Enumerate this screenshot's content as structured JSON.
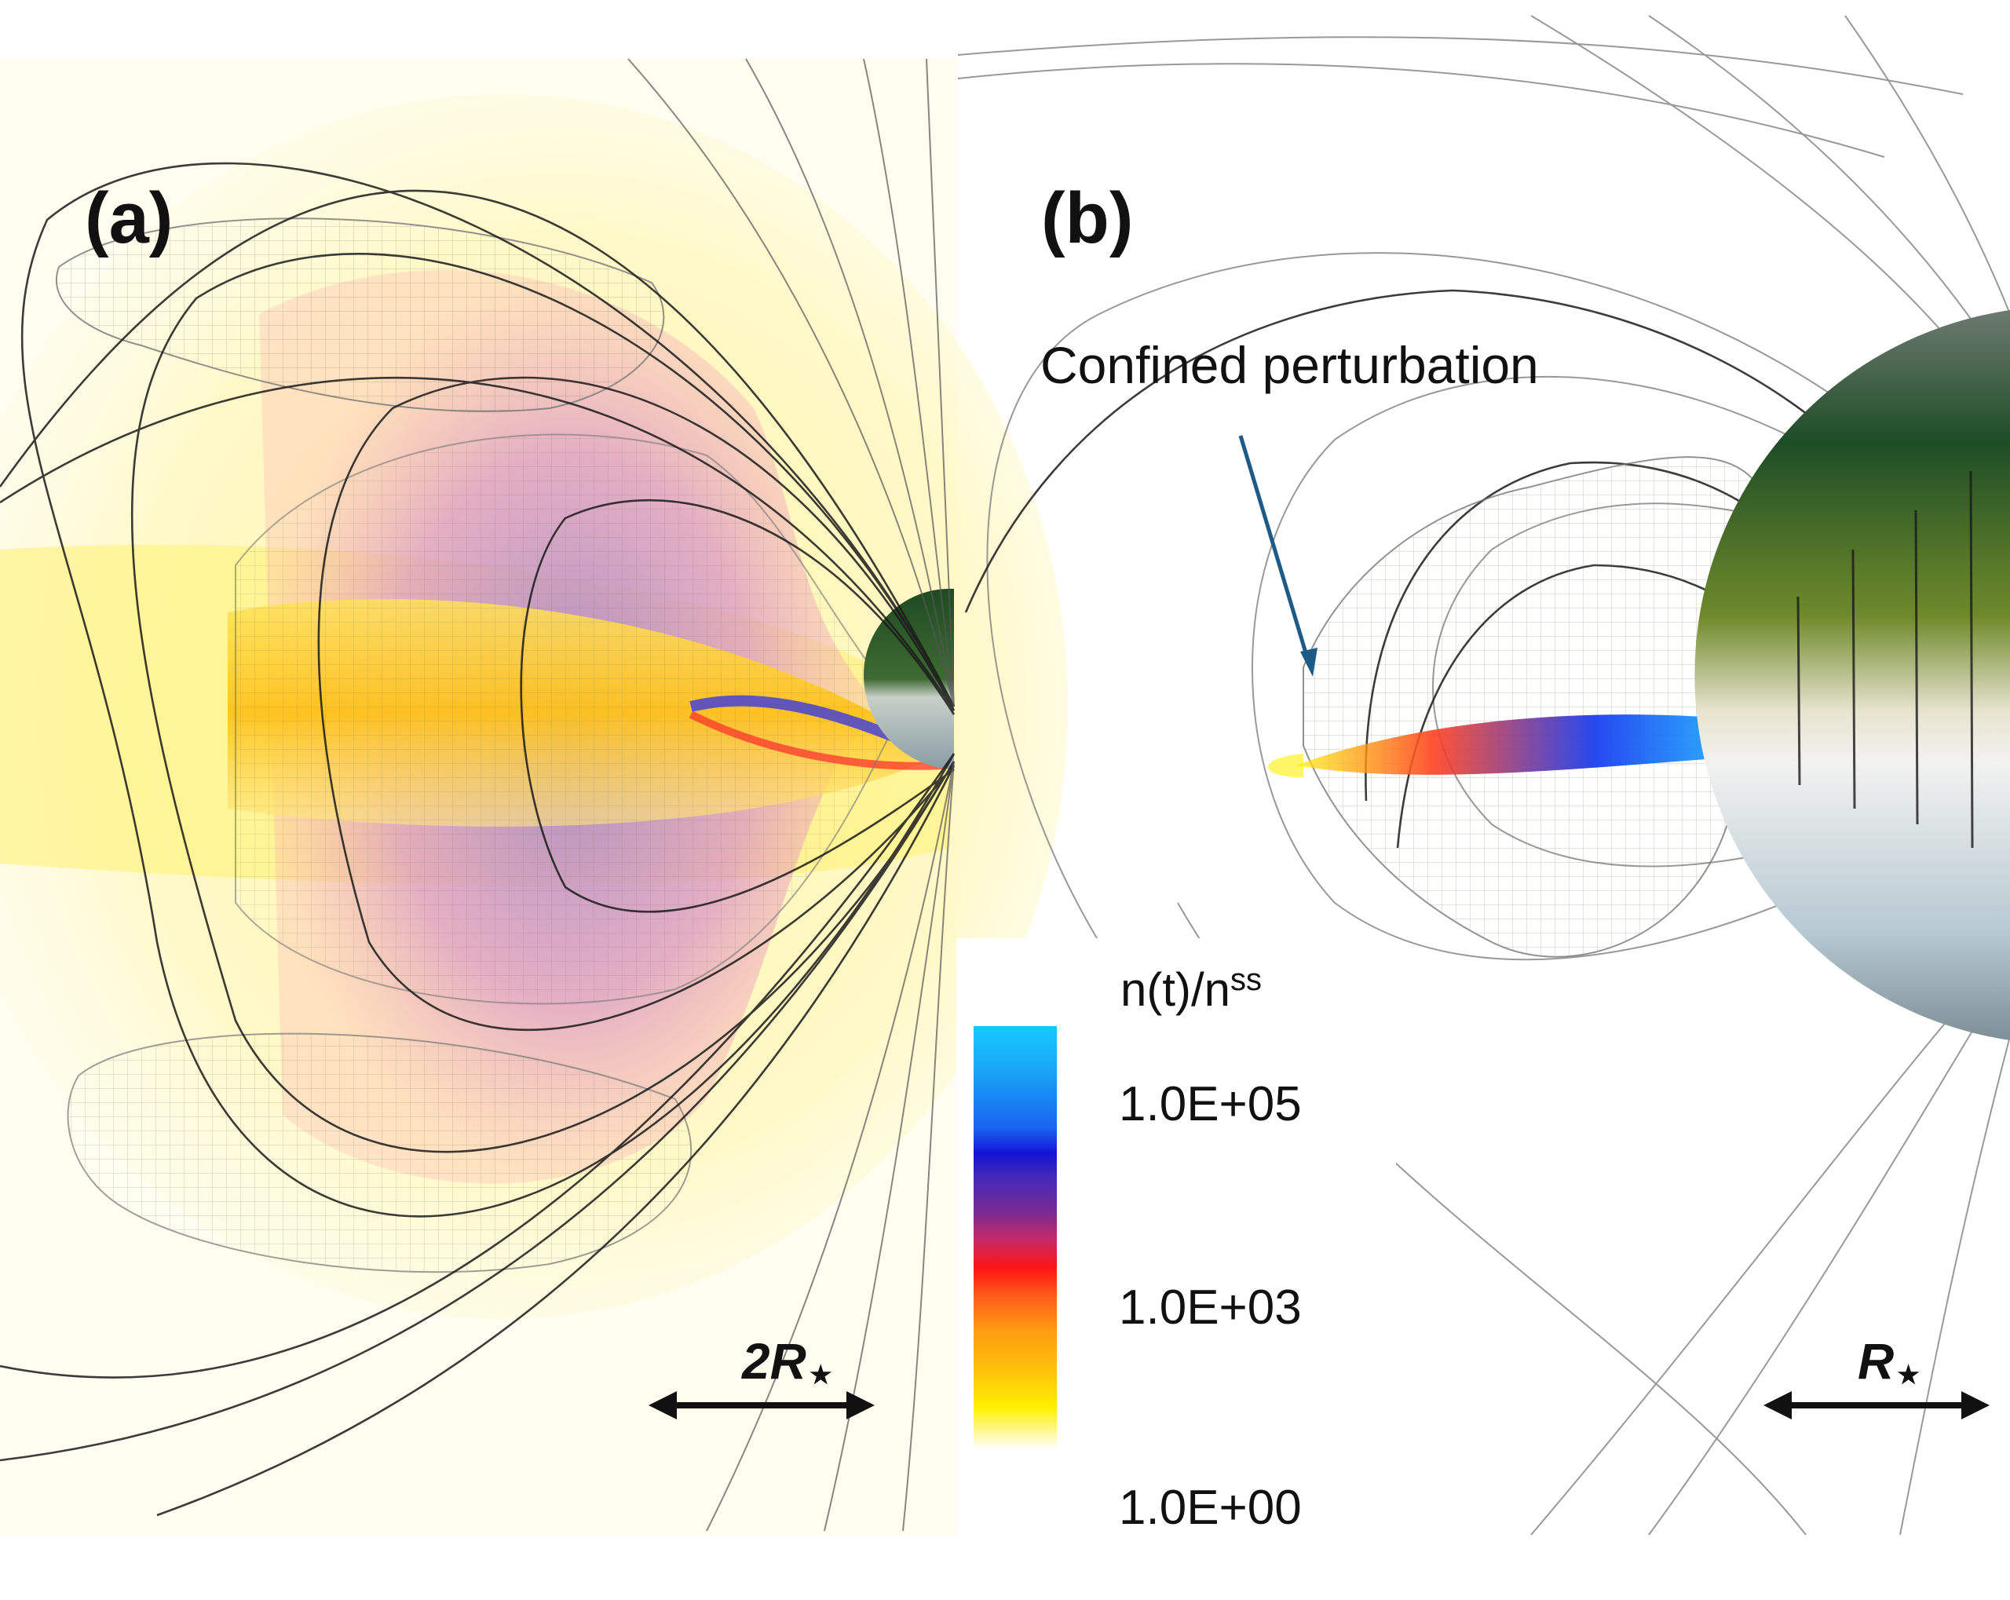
{
  "panels": {
    "a": {
      "label": "(a)",
      "scale_bar": {
        "text": "2R",
        "star": "★"
      }
    },
    "b": {
      "label": "(b)",
      "annotation": "Confined perturbation",
      "scale_bar": {
        "text": "R",
        "star": "★"
      }
    }
  },
  "colorbar": {
    "title_main": "n(t)/n",
    "title_sup": "ss",
    "ticks": [
      "1.0E+05",
      "1.0E+03",
      "1.0E+00"
    ],
    "colors": [
      "#16c9ff",
      "#1a63f0",
      "#1414d8",
      "#7a2a92",
      "#ff1414",
      "#ff9c10",
      "#fff000",
      "#ffffff"
    ]
  },
  "colors": {
    "field_line": "#111111",
    "arrow_annotation": "#1e5a86",
    "star_surface_top": "#1f4a22",
    "star_surface_bottom": "#9fb8c4"
  }
}
